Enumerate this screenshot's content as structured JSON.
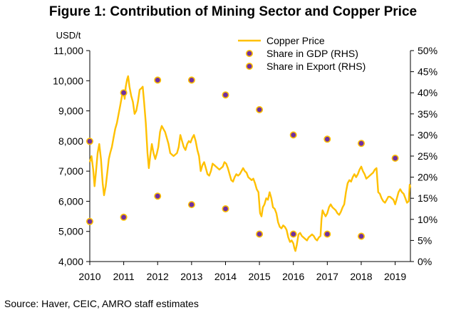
{
  "title": "Figure 1:  Contribution of Mining Sector and Copper Price",
  "source": "Source: Haver, CEIC, AMRO staff estimates",
  "colors": {
    "copper_line": "#FFC000",
    "gdp_marker": "#7030A0",
    "export_marker": "#7030A0",
    "marker_edge": "#FFC000",
    "axis": "#000000"
  },
  "chart_data": {
    "type": "line",
    "title": "Figure 1:  Contribution of Mining Sector and Copper Price",
    "y_left": {
      "unit_label": "USD/t",
      "min": 4000,
      "max": 11000,
      "ticks": [
        4000,
        5000,
        6000,
        7000,
        8000,
        9000,
        10000,
        11000
      ],
      "tick_labels": [
        "4,000",
        "5,000",
        "6,000",
        "7,000",
        "8,000",
        "9,000",
        "10,000",
        "11,000"
      ]
    },
    "y_right": {
      "min": 0,
      "max": 50,
      "ticks": [
        0,
        5,
        10,
        15,
        20,
        25,
        30,
        35,
        40,
        45,
        50
      ],
      "tick_labels": [
        "0%",
        "5%",
        "10%",
        "15%",
        "20%",
        "25%",
        "30%",
        "35%",
        "40%",
        "45%",
        "50%"
      ]
    },
    "x": {
      "min": 2010,
      "max": 2019.45,
      "ticks": [
        2010,
        2011,
        2012,
        2013,
        2014,
        2015,
        2016,
        2017,
        2018,
        2019
      ],
      "tick_labels": [
        "2010",
        "2011",
        "2012",
        "2013",
        "2014",
        "2015",
        "2016",
        "2017",
        "2018",
        "2019"
      ]
    },
    "legend_position": "top-right",
    "grid": false,
    "series": [
      {
        "name": "Copper Price",
        "kind": "line",
        "axis": "left",
        "points": [
          [
            2010.0,
            7300
          ],
          [
            2010.05,
            7500
          ],
          [
            2010.1,
            7050
          ],
          [
            2010.14,
            6500
          ],
          [
            2010.18,
            6950
          ],
          [
            2010.23,
            7600
          ],
          [
            2010.28,
            7900
          ],
          [
            2010.33,
            7400
          ],
          [
            2010.38,
            6600
          ],
          [
            2010.42,
            6200
          ],
          [
            2010.47,
            6500
          ],
          [
            2010.52,
            7000
          ],
          [
            2010.56,
            7400
          ],
          [
            2010.6,
            7600
          ],
          [
            2010.65,
            7800
          ],
          [
            2010.7,
            8100
          ],
          [
            2010.75,
            8400
          ],
          [
            2010.8,
            8600
          ],
          [
            2010.85,
            8900
          ],
          [
            2010.9,
            9200
          ],
          [
            2010.95,
            9500
          ],
          [
            2011.0,
            9600
          ],
          [
            2011.03,
            9400
          ],
          [
            2011.06,
            9800
          ],
          [
            2011.1,
            10050
          ],
          [
            2011.13,
            10150
          ],
          [
            2011.17,
            9800
          ],
          [
            2011.22,
            9500
          ],
          [
            2011.27,
            9300
          ],
          [
            2011.32,
            8900
          ],
          [
            2011.37,
            9000
          ],
          [
            2011.42,
            9300
          ],
          [
            2011.47,
            9700
          ],
          [
            2011.52,
            9750
          ],
          [
            2011.56,
            9800
          ],
          [
            2011.6,
            9300
          ],
          [
            2011.65,
            8600
          ],
          [
            2011.7,
            7600
          ],
          [
            2011.74,
            7100
          ],
          [
            2011.78,
            7500
          ],
          [
            2011.83,
            7900
          ],
          [
            2011.88,
            7600
          ],
          [
            2011.93,
            7400
          ],
          [
            2011.98,
            7600
          ],
          [
            2012.02,
            7800
          ],
          [
            2012.07,
            8300
          ],
          [
            2012.12,
            8500
          ],
          [
            2012.17,
            8400
          ],
          [
            2012.22,
            8300
          ],
          [
            2012.27,
            8100
          ],
          [
            2012.32,
            7900
          ],
          [
            2012.37,
            7600
          ],
          [
            2012.42,
            7550
          ],
          [
            2012.47,
            7500
          ],
          [
            2012.52,
            7550
          ],
          [
            2012.57,
            7600
          ],
          [
            2012.62,
            7800
          ],
          [
            2012.67,
            8200
          ],
          [
            2012.72,
            8000
          ],
          [
            2012.77,
            7800
          ],
          [
            2012.82,
            7700
          ],
          [
            2012.87,
            7900
          ],
          [
            2012.92,
            8000
          ],
          [
            2012.97,
            7950
          ],
          [
            2013.02,
            8100
          ],
          [
            2013.07,
            8200
          ],
          [
            2013.12,
            8000
          ],
          [
            2013.17,
            7700
          ],
          [
            2013.22,
            7500
          ],
          [
            2013.27,
            7000
          ],
          [
            2013.32,
            7200
          ],
          [
            2013.37,
            7300
          ],
          [
            2013.42,
            7100
          ],
          [
            2013.47,
            6900
          ],
          [
            2013.52,
            6850
          ],
          [
            2013.57,
            7000
          ],
          [
            2013.62,
            7250
          ],
          [
            2013.67,
            7200
          ],
          [
            2013.72,
            7150
          ],
          [
            2013.77,
            7100
          ],
          [
            2013.82,
            7050
          ],
          [
            2013.87,
            7100
          ],
          [
            2013.92,
            7150
          ],
          [
            2013.97,
            7300
          ],
          [
            2014.02,
            7250
          ],
          [
            2014.07,
            7100
          ],
          [
            2014.12,
            6900
          ],
          [
            2014.17,
            6700
          ],
          [
            2014.22,
            6650
          ],
          [
            2014.27,
            6800
          ],
          [
            2014.32,
            6900
          ],
          [
            2014.37,
            6850
          ],
          [
            2014.42,
            6900
          ],
          [
            2014.47,
            7000
          ],
          [
            2014.52,
            7100
          ],
          [
            2014.57,
            7000
          ],
          [
            2014.62,
            6950
          ],
          [
            2014.67,
            6800
          ],
          [
            2014.72,
            6750
          ],
          [
            2014.77,
            6700
          ],
          [
            2014.82,
            6750
          ],
          [
            2014.87,
            6600
          ],
          [
            2014.92,
            6400
          ],
          [
            2014.97,
            6300
          ],
          [
            2015.02,
            5600
          ],
          [
            2015.06,
            5500
          ],
          [
            2015.1,
            5800
          ],
          [
            2015.15,
            5900
          ],
          [
            2015.2,
            6100
          ],
          [
            2015.25,
            6050
          ],
          [
            2015.3,
            6300
          ],
          [
            2015.35,
            6100
          ],
          [
            2015.4,
            5800
          ],
          [
            2015.45,
            5750
          ],
          [
            2015.5,
            5600
          ],
          [
            2015.55,
            5300
          ],
          [
            2015.6,
            5150
          ],
          [
            2015.65,
            5100
          ],
          [
            2015.7,
            5200
          ],
          [
            2015.75,
            5150
          ],
          [
            2015.8,
            5050
          ],
          [
            2015.85,
            4800
          ],
          [
            2015.9,
            4650
          ],
          [
            2015.95,
            4700
          ],
          [
            2016.0,
            4600
          ],
          [
            2016.03,
            4450
          ],
          [
            2016.06,
            4350
          ],
          [
            2016.1,
            4550
          ],
          [
            2016.15,
            4900
          ],
          [
            2016.2,
            4950
          ],
          [
            2016.25,
            4850
          ],
          [
            2016.3,
            4800
          ],
          [
            2016.35,
            4750
          ],
          [
            2016.4,
            4700
          ],
          [
            2016.45,
            4800
          ],
          [
            2016.5,
            4850
          ],
          [
            2016.55,
            4900
          ],
          [
            2016.6,
            4850
          ],
          [
            2016.65,
            4750
          ],
          [
            2016.7,
            4700
          ],
          [
            2016.75,
            4800
          ],
          [
            2016.8,
            4850
          ],
          [
            2016.83,
            5400
          ],
          [
            2016.86,
            5700
          ],
          [
            2016.9,
            5600
          ],
          [
            2016.95,
            5500
          ],
          [
            2017.0,
            5600
          ],
          [
            2017.05,
            5800
          ],
          [
            2017.1,
            5900
          ],
          [
            2017.15,
            5800
          ],
          [
            2017.2,
            5750
          ],
          [
            2017.25,
            5700
          ],
          [
            2017.3,
            5600
          ],
          [
            2017.35,
            5550
          ],
          [
            2017.4,
            5650
          ],
          [
            2017.45,
            5800
          ],
          [
            2017.5,
            5900
          ],
          [
            2017.55,
            6300
          ],
          [
            2017.6,
            6600
          ],
          [
            2017.65,
            6700
          ],
          [
            2017.7,
            6650
          ],
          [
            2017.75,
            6800
          ],
          [
            2017.8,
            6900
          ],
          [
            2017.85,
            6800
          ],
          [
            2017.9,
            6900
          ],
          [
            2017.95,
            7050
          ],
          [
            2018.0,
            7150
          ],
          [
            2018.05,
            7000
          ],
          [
            2018.1,
            6900
          ],
          [
            2018.15,
            6750
          ],
          [
            2018.2,
            6800
          ],
          [
            2018.25,
            6850
          ],
          [
            2018.3,
            6900
          ],
          [
            2018.35,
            6950
          ],
          [
            2018.4,
            7050
          ],
          [
            2018.45,
            7100
          ],
          [
            2018.5,
            6300
          ],
          [
            2018.55,
            6250
          ],
          [
            2018.6,
            6100
          ],
          [
            2018.65,
            6000
          ],
          [
            2018.7,
            5950
          ],
          [
            2018.75,
            6050
          ],
          [
            2018.8,
            6150
          ],
          [
            2018.85,
            6150
          ],
          [
            2018.9,
            6100
          ],
          [
            2018.95,
            6050
          ],
          [
            2019.0,
            5900
          ],
          [
            2019.05,
            6100
          ],
          [
            2019.1,
            6300
          ],
          [
            2019.15,
            6400
          ],
          [
            2019.2,
            6300
          ],
          [
            2019.25,
            6250
          ],
          [
            2019.3,
            6100
          ],
          [
            2019.35,
            5950
          ],
          [
            2019.4,
            6000
          ],
          [
            2019.43,
            6550
          ],
          [
            2019.45,
            6450
          ]
        ]
      },
      {
        "name": "Share in GDP (RHS)",
        "kind": "scatter",
        "axis": "right",
        "points": [
          [
            2010,
            9.5
          ],
          [
            2011,
            10.5
          ],
          [
            2012,
            15.5
          ],
          [
            2013,
            13.5
          ],
          [
            2014,
            12.5
          ],
          [
            2015,
            6.5
          ],
          [
            2016,
            6.5
          ],
          [
            2017,
            6.5
          ],
          [
            2018,
            6.0
          ]
        ]
      },
      {
        "name": "Share in Export (RHS)",
        "kind": "scatter",
        "axis": "right",
        "points": [
          [
            2010,
            28.5
          ],
          [
            2011,
            40.0
          ],
          [
            2012,
            43.0
          ],
          [
            2013,
            43.0
          ],
          [
            2014,
            39.5
          ],
          [
            2015,
            36.0
          ],
          [
            2016,
            30.0
          ],
          [
            2017,
            29.0
          ],
          [
            2018,
            28.0
          ],
          [
            2019,
            24.5
          ]
        ]
      }
    ]
  }
}
